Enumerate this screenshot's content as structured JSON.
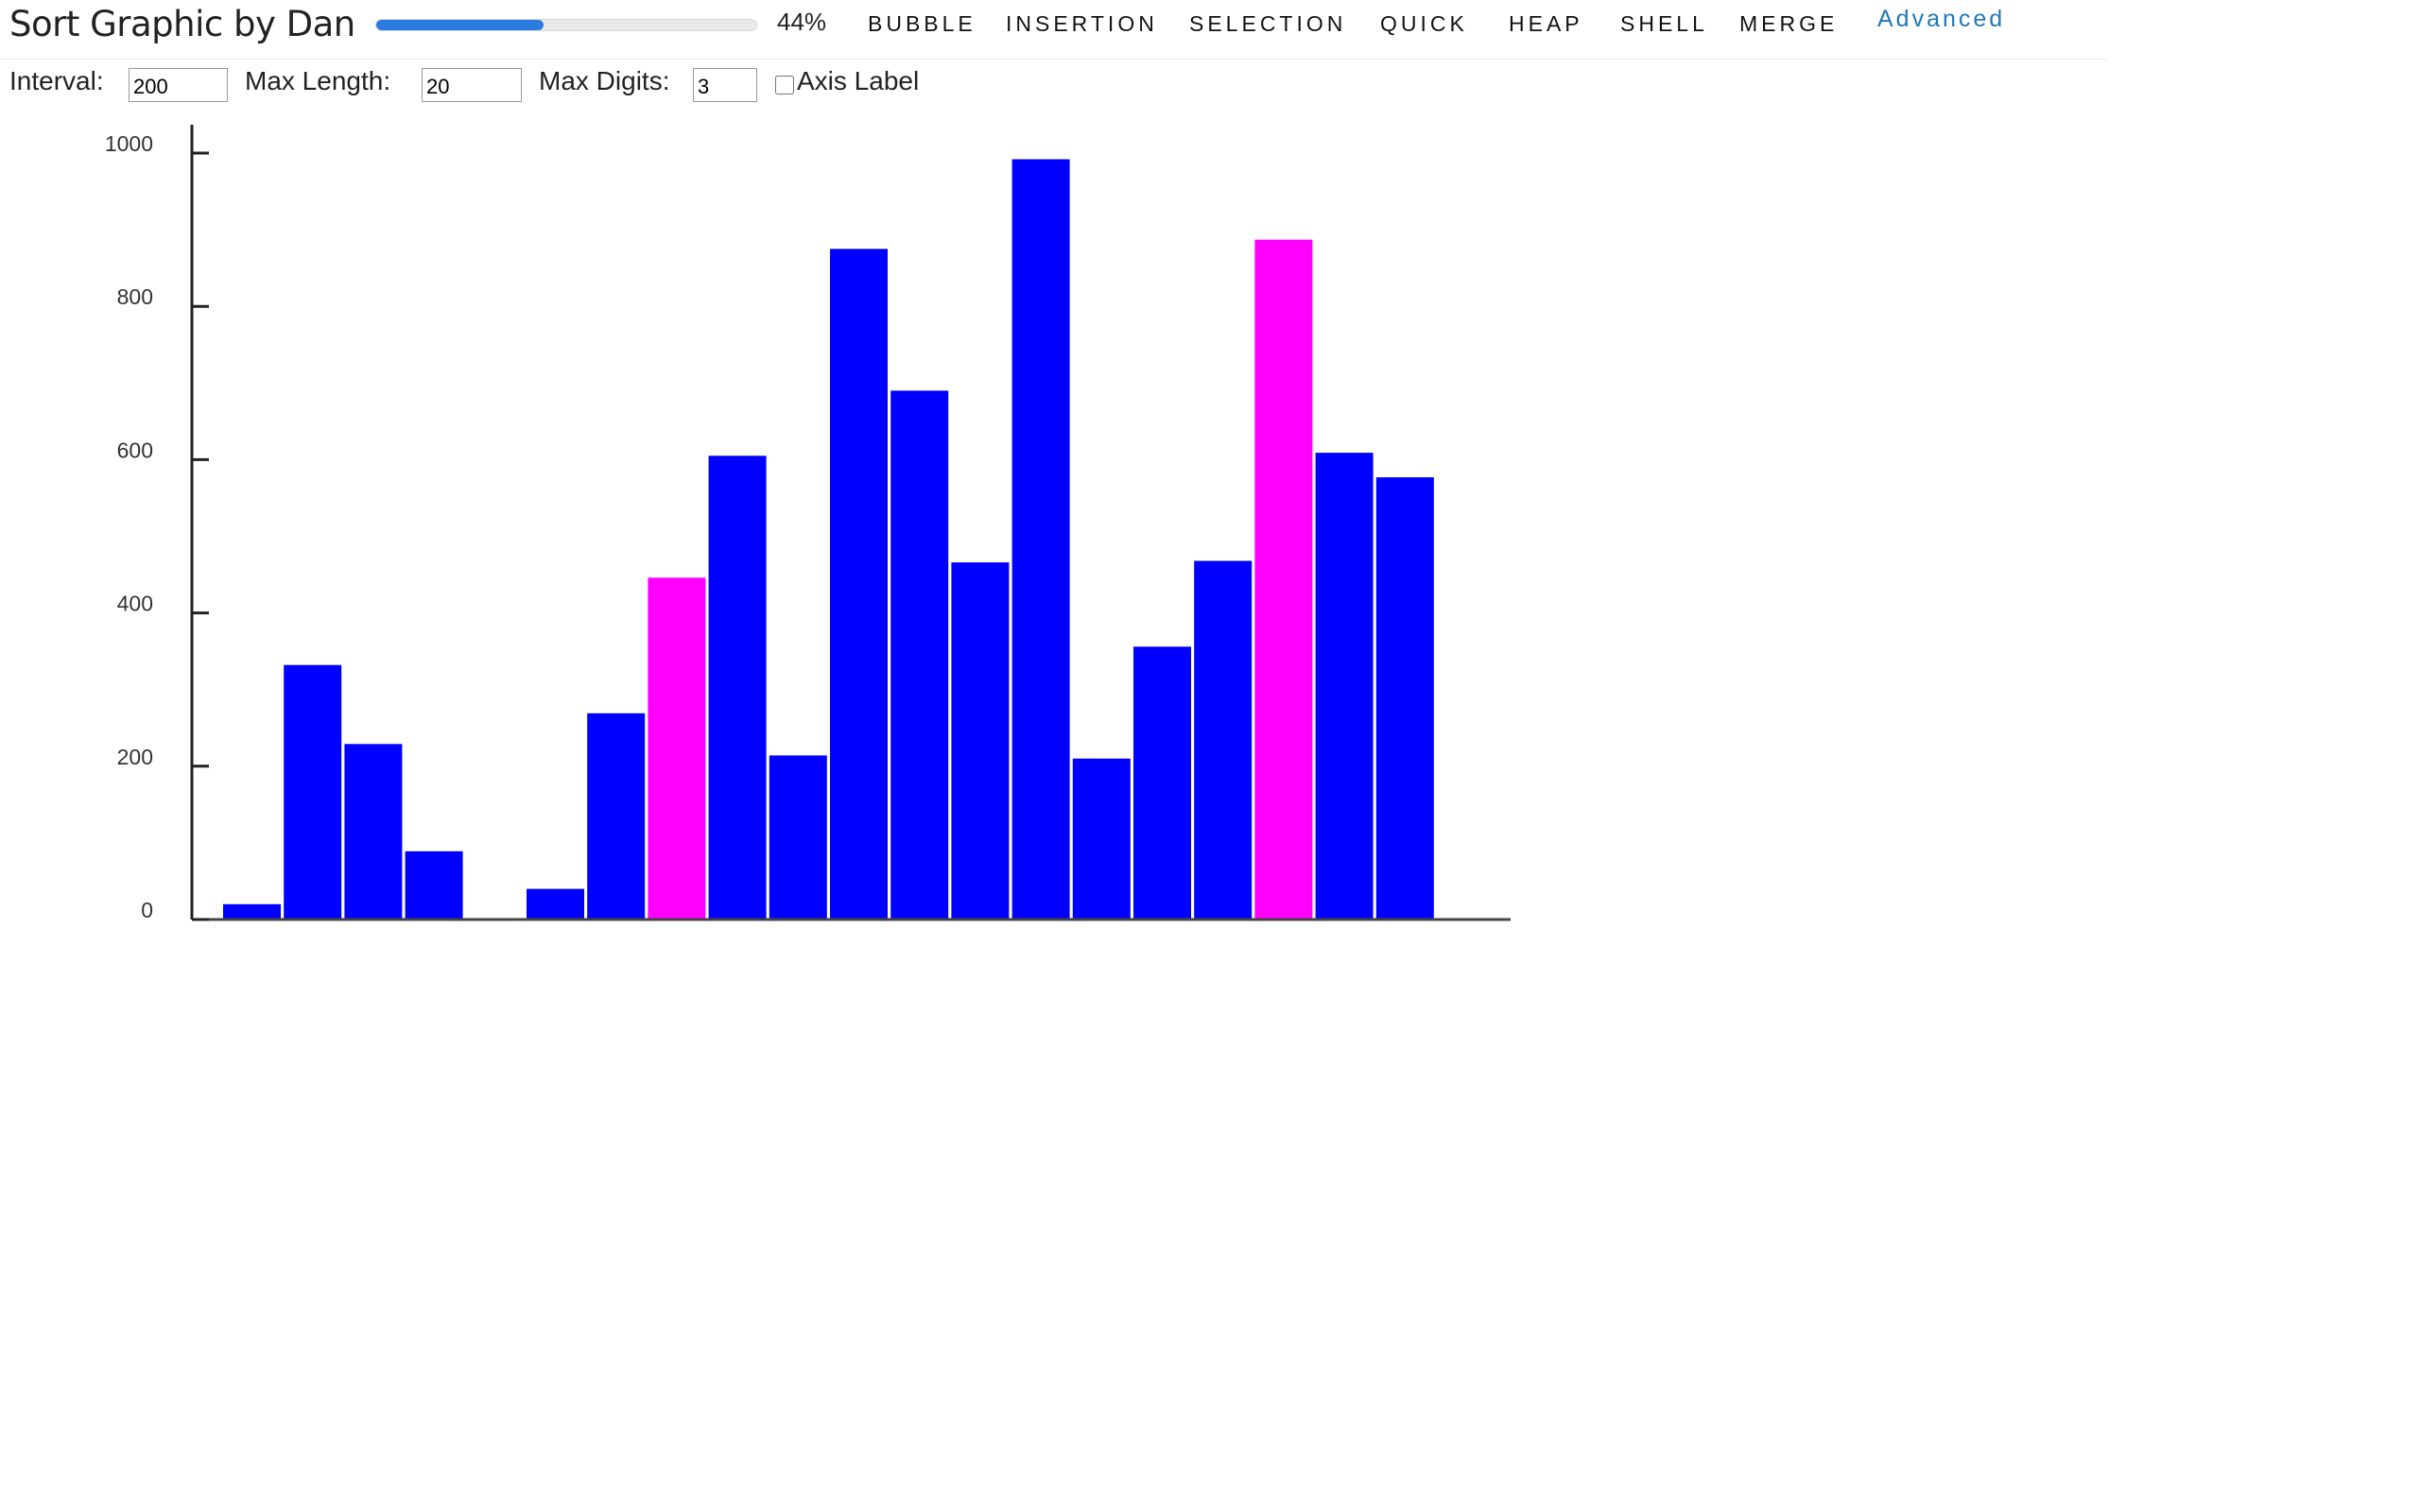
{
  "app": {
    "title": "Sort Graphic by Dan"
  },
  "progress": {
    "value_fraction": 0.44,
    "text": "44%",
    "fill_color": "#2b7be0"
  },
  "nav": {
    "items": [
      {
        "label": "BUBBLE"
      },
      {
        "label": "INSERTION"
      },
      {
        "label": "SELECTION"
      },
      {
        "label": "QUICK"
      },
      {
        "label": "HEAP"
      },
      {
        "label": "SHELL"
      },
      {
        "label": "MERGE"
      }
    ],
    "advanced_label": "Advanced",
    "advanced_color": "#1f78b8"
  },
  "controls": {
    "interval_label": "Interval:",
    "interval_value": "200",
    "max_length_label": "Max Length:",
    "max_length_value": "20",
    "max_digits_label": "Max Digits:",
    "max_digits_value": "3",
    "axis_label_text": "Axis Label",
    "axis_label_checked": false
  },
  "chart_data": {
    "type": "bar",
    "values": [
      20,
      332,
      229,
      89,
      0,
      40,
      269,
      446,
      605,
      214,
      875,
      690,
      466,
      992,
      210,
      356,
      468,
      887,
      609,
      577
    ],
    "highlighted_indices": [
      7,
      17
    ],
    "bar_color": "#0000ff",
    "highlight_color": "#ff00ff",
    "ylim": [
      0,
      1000
    ],
    "y_ticks": [
      0,
      200,
      400,
      600,
      800,
      1000
    ],
    "y_tick_labels": [
      "0",
      "200",
      "400",
      "600",
      "800",
      "1000"
    ],
    "grid": false,
    "xlabel": "",
    "ylabel": ""
  }
}
